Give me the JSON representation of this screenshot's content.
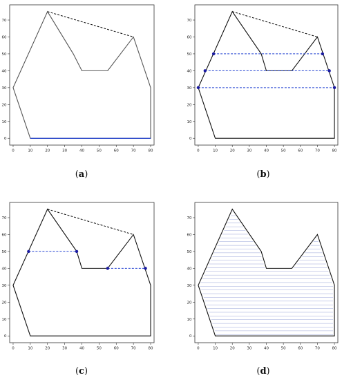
{
  "chart_data": [
    {
      "type": "line",
      "label": "a",
      "xlim": [
        -2,
        82
      ],
      "ylim": [
        -4,
        79
      ],
      "xticks": [
        0,
        10,
        20,
        30,
        40,
        50,
        60,
        70,
        80
      ],
      "yticks": [
        0,
        10,
        20,
        30,
        40,
        50,
        60,
        70
      ],
      "polygon": [
        [
          10,
          0
        ],
        [
          0,
          30
        ],
        [
          20,
          75
        ],
        [
          35,
          50
        ],
        [
          40,
          40
        ],
        [
          55,
          40
        ],
        [
          70,
          60
        ],
        [
          80,
          30
        ],
        [
          80,
          0
        ]
      ],
      "polygon_color": "#555555",
      "hull_edge": [
        [
          20,
          75
        ],
        [
          70,
          60
        ]
      ],
      "hull_color": "#000000",
      "segments": [
        {
          "from": [
            10,
            0
          ],
          "to": [
            80,
            0
          ],
          "color": "#1f3fd0",
          "dashed": false
        }
      ],
      "points": [],
      "hatch": null
    },
    {
      "type": "line",
      "label": "b",
      "xlim": [
        -2,
        82
      ],
      "ylim": [
        -4,
        79
      ],
      "xticks": [
        0,
        10,
        20,
        30,
        40,
        50,
        60,
        70,
        80
      ],
      "yticks": [
        0,
        10,
        20,
        30,
        40,
        50,
        60,
        70
      ],
      "polygon": [
        [
          10,
          0
        ],
        [
          0,
          30
        ],
        [
          20,
          75
        ],
        [
          37,
          50
        ],
        [
          40,
          40
        ],
        [
          55,
          40
        ],
        [
          70,
          60
        ],
        [
          80,
          30
        ],
        [
          80,
          0
        ]
      ],
      "polygon_color": "#111111",
      "hull_edge": [
        [
          20,
          75
        ],
        [
          70,
          60
        ]
      ],
      "hull_color": "#000000",
      "segments": [
        {
          "from": [
            0,
            30
          ],
          "to": [
            80,
            30
          ],
          "color": "#1f3fd0",
          "dashed": true
        },
        {
          "from": [
            4,
            40
          ],
          "to": [
            77,
            40
          ],
          "color": "#1f3fd0",
          "dashed": true
        },
        {
          "from": [
            9,
            50
          ],
          "to": [
            73,
            50
          ],
          "color": "#1f3fd0",
          "dashed": true
        }
      ],
      "points": [
        [
          0,
          30
        ],
        [
          80,
          30
        ],
        [
          4,
          40
        ],
        [
          77,
          40
        ],
        [
          9,
          50
        ],
        [
          73,
          50
        ]
      ],
      "hatch": null
    },
    {
      "type": "line",
      "label": "c",
      "xlim": [
        -2,
        82
      ],
      "ylim": [
        -4,
        79
      ],
      "xticks": [
        0,
        10,
        20,
        30,
        40,
        50,
        60,
        70,
        80
      ],
      "yticks": [
        0,
        10,
        20,
        30,
        40,
        50,
        60,
        70
      ],
      "polygon": [
        [
          10,
          0
        ],
        [
          0,
          30
        ],
        [
          20,
          75
        ],
        [
          37,
          50
        ],
        [
          40,
          40
        ],
        [
          55,
          40
        ],
        [
          70,
          60
        ],
        [
          80,
          30
        ],
        [
          80,
          0
        ]
      ],
      "polygon_color": "#111111",
      "hull_edge": [
        [
          20,
          75
        ],
        [
          70,
          60
        ]
      ],
      "hull_color": "#000000",
      "segments": [
        {
          "from": [
            9,
            50
          ],
          "to": [
            37,
            50
          ],
          "color": "#1f3fd0",
          "dashed": true
        },
        {
          "from": [
            55,
            40
          ],
          "to": [
            77,
            40
          ],
          "color": "#1f3fd0",
          "dashed": true
        }
      ],
      "points": [
        [
          9,
          50
        ],
        [
          37,
          50
        ],
        [
          55,
          40
        ],
        [
          77,
          40
        ]
      ],
      "hatch": null
    },
    {
      "type": "line",
      "label": "d",
      "xlim": [
        -2,
        82
      ],
      "ylim": [
        -4,
        79
      ],
      "xticks": [
        0,
        10,
        20,
        30,
        40,
        50,
        60,
        70,
        80
      ],
      "yticks": [
        0,
        10,
        20,
        30,
        40,
        50,
        60,
        70
      ],
      "polygon": [
        [
          10,
          0
        ],
        [
          0,
          30
        ],
        [
          20,
          75
        ],
        [
          37,
          50
        ],
        [
          40,
          40
        ],
        [
          55,
          40
        ],
        [
          70,
          60
        ],
        [
          80,
          30
        ],
        [
          80,
          0
        ]
      ],
      "polygon_color": "#111111",
      "hull_edge": null,
      "hull_color": "#000000",
      "segments": [],
      "points": [],
      "hatch": {
        "color": "#9aa4d8",
        "spacing": 2.2
      }
    }
  ],
  "captions": [
    {
      "open": "(",
      "letter": "a",
      "close": ")"
    },
    {
      "open": "(",
      "letter": "b",
      "close": ")"
    },
    {
      "open": "(",
      "letter": "c",
      "close": ")"
    },
    {
      "open": "(",
      "letter": "d",
      "close": ")"
    }
  ]
}
